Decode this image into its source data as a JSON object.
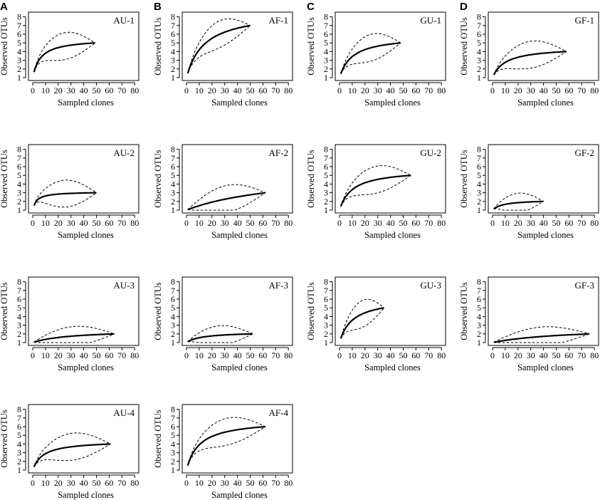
{
  "chart_data": {
    "type": "line",
    "description_free": true,
    "column_labels": [
      "A",
      "B",
      "C",
      "D"
    ],
    "xlabel": "Sampled clones",
    "ylabel": "Observed OTUs",
    "xlim": [
      0,
      80
    ],
    "ylim": [
      1,
      8
    ],
    "xticks": [
      0,
      10,
      20,
      30,
      40,
      50,
      60,
      70,
      80
    ],
    "yticks": [
      1,
      2,
      3,
      4,
      5,
      6,
      7,
      8
    ],
    "panels": [
      {
        "name": "AU-1",
        "col": 0,
        "row": 0,
        "n": 49,
        "s": 5,
        "k": 6
      },
      {
        "name": "AU-2",
        "col": 0,
        "row": 1,
        "n": 50,
        "s": 3,
        "k": 3
      },
      {
        "name": "AU-3",
        "col": 0,
        "row": 2,
        "n": 64,
        "s": 2,
        "k": 30
      },
      {
        "name": "AU-4",
        "col": 0,
        "row": 3,
        "n": 61,
        "s": 4,
        "k": 8
      },
      {
        "name": "AF-1",
        "col": 1,
        "row": 0,
        "n": 50,
        "s": 7,
        "k": 14
      },
      {
        "name": "AF-2",
        "col": 1,
        "row": 1,
        "n": 62,
        "s": 3,
        "k": 80
      },
      {
        "name": "AF-3",
        "col": 1,
        "row": 2,
        "n": 52,
        "s": 2,
        "k": 12
      },
      {
        "name": "AF-4",
        "col": 1,
        "row": 3,
        "n": 62,
        "s": 6,
        "k": 10
      },
      {
        "name": "GU-1",
        "col": 2,
        "row": 0,
        "n": 48,
        "s": 5,
        "k": 10
      },
      {
        "name": "GU-2",
        "col": 2,
        "row": 1,
        "n": 56,
        "s": 5,
        "k": 10
      },
      {
        "name": "GU-3",
        "col": 2,
        "row": 2,
        "n": 35,
        "s": 5,
        "k": 10
      },
      {
        "name": "GF-1",
        "col": 3,
        "row": 0,
        "n": 58,
        "s": 4,
        "k": 10
      },
      {
        "name": "GF-2",
        "col": 3,
        "row": 1,
        "n": 40,
        "s": 2,
        "k": 8
      },
      {
        "name": "GF-3",
        "col": 3,
        "row": 2,
        "n": 76,
        "s": 2,
        "k": 60
      }
    ]
  }
}
